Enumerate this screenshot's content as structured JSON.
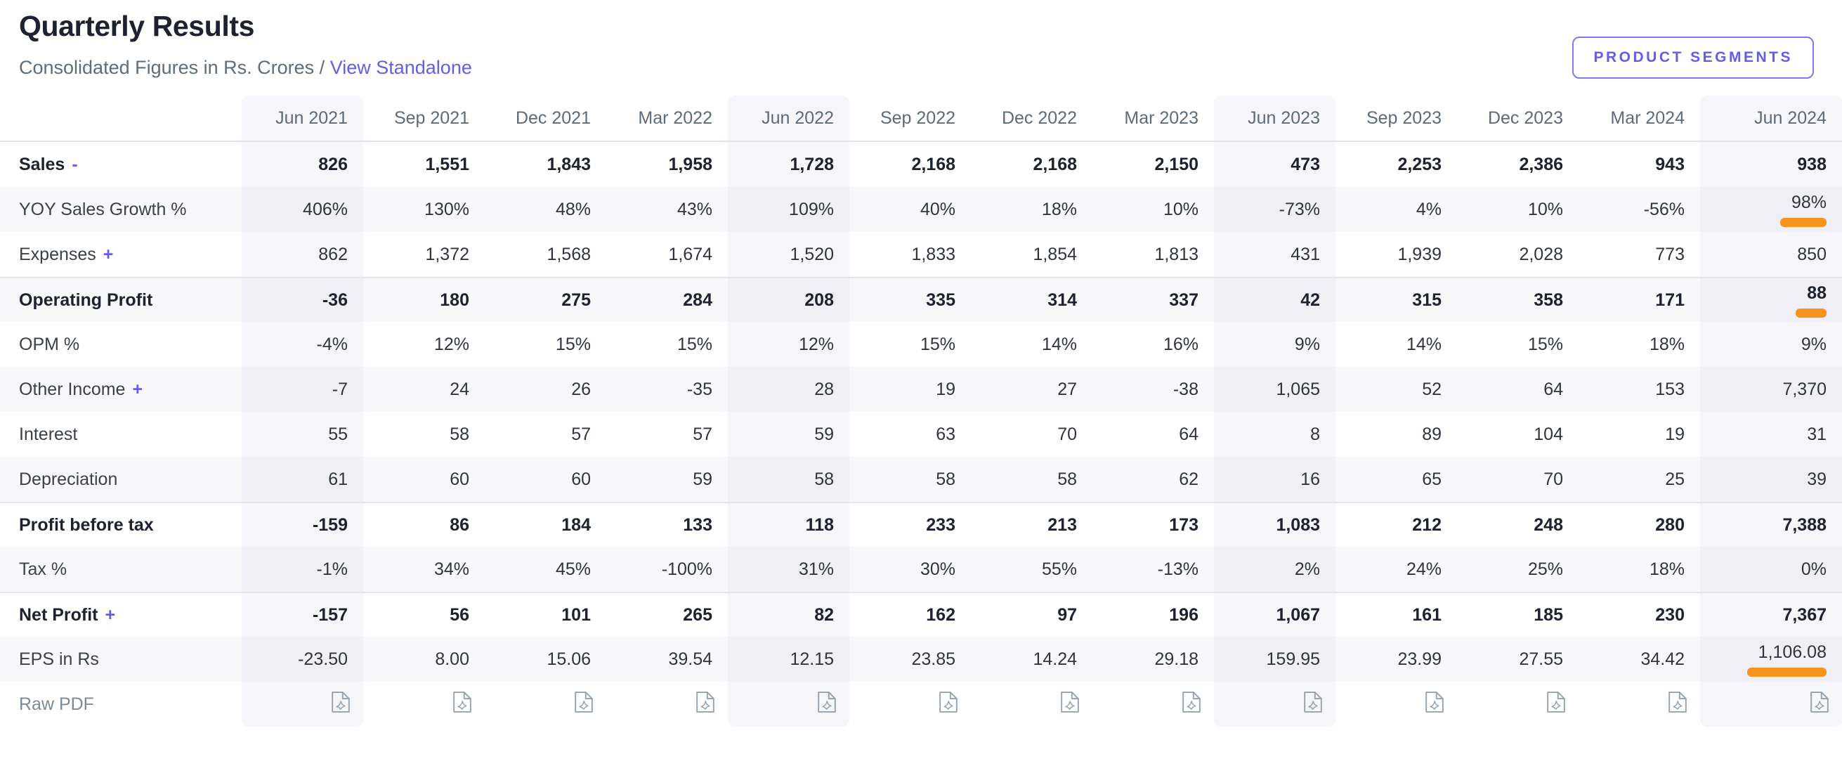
{
  "page": {
    "title": "Quarterly Results",
    "subtitle_prefix": "Consolidated Figures in Rs. Crores / ",
    "standalone_link": "View Standalone",
    "segments_button": "PRODUCT SEGMENTS"
  },
  "colors": {
    "accent": "#655cec",
    "highlight_orange": "#f8941d",
    "column_stripe": "#f2f2f8",
    "row_stripe": "#f8f8fa",
    "separator": "#dde8ee"
  },
  "icons": {
    "pdf_icon": "pdf-file-icon"
  },
  "table": {
    "columns": [
      "Jun 2021",
      "Sep 2021",
      "Dec 2021",
      "Mar 2022",
      "Jun 2022",
      "Sep 2022",
      "Dec 2022",
      "Mar 2023",
      "Jun 2023",
      "Sep 2023",
      "Dec 2023",
      "Mar 2024",
      "Jun 2024"
    ],
    "striped_column_indexes": [
      0,
      4,
      8,
      12
    ],
    "rows": [
      {
        "label": "Sales",
        "suffix": "-",
        "bold": true,
        "sep": false,
        "highlight_last": false,
        "values": [
          "826",
          "1,551",
          "1,843",
          "1,958",
          "1,728",
          "2,168",
          "2,168",
          "2,150",
          "473",
          "2,253",
          "2,386",
          "943",
          "938"
        ]
      },
      {
        "label": "YOY Sales Growth %",
        "suffix": "",
        "bold": false,
        "sep": false,
        "highlight_last": true,
        "values": [
          "406%",
          "130%",
          "48%",
          "43%",
          "109%",
          "40%",
          "18%",
          "10%",
          "-73%",
          "4%",
          "10%",
          "-56%",
          "98%"
        ]
      },
      {
        "label": "Expenses",
        "suffix": "+",
        "bold": false,
        "sep": false,
        "highlight_last": false,
        "values": [
          "862",
          "1,372",
          "1,568",
          "1,674",
          "1,520",
          "1,833",
          "1,854",
          "1,813",
          "431",
          "1,939",
          "2,028",
          "773",
          "850"
        ]
      },
      {
        "label": "Operating Profit",
        "suffix": "",
        "bold": true,
        "sep": true,
        "highlight_last": true,
        "values": [
          "-36",
          "180",
          "275",
          "284",
          "208",
          "335",
          "314",
          "337",
          "42",
          "315",
          "358",
          "171",
          "88"
        ]
      },
      {
        "label": "OPM %",
        "suffix": "",
        "bold": false,
        "sep": false,
        "highlight_last": false,
        "values": [
          "-4%",
          "12%",
          "15%",
          "15%",
          "12%",
          "15%",
          "14%",
          "16%",
          "9%",
          "14%",
          "15%",
          "18%",
          "9%"
        ]
      },
      {
        "label": "Other Income",
        "suffix": "+",
        "bold": false,
        "sep": false,
        "highlight_last": false,
        "values": [
          "-7",
          "24",
          "26",
          "-35",
          "28",
          "19",
          "27",
          "-38",
          "1,065",
          "52",
          "64",
          "153",
          "7,370"
        ]
      },
      {
        "label": "Interest",
        "suffix": "",
        "bold": false,
        "sep": false,
        "highlight_last": false,
        "values": [
          "55",
          "58",
          "57",
          "57",
          "59",
          "63",
          "70",
          "64",
          "8",
          "89",
          "104",
          "19",
          "31"
        ]
      },
      {
        "label": "Depreciation",
        "suffix": "",
        "bold": false,
        "sep": false,
        "highlight_last": false,
        "values": [
          "61",
          "60",
          "60",
          "59",
          "58",
          "58",
          "58",
          "62",
          "16",
          "65",
          "70",
          "25",
          "39"
        ]
      },
      {
        "label": "Profit before tax",
        "suffix": "",
        "bold": true,
        "sep": true,
        "highlight_last": false,
        "values": [
          "-159",
          "86",
          "184",
          "133",
          "118",
          "233",
          "213",
          "173",
          "1,083",
          "212",
          "248",
          "280",
          "7,388"
        ]
      },
      {
        "label": "Tax %",
        "suffix": "",
        "bold": false,
        "sep": false,
        "highlight_last": false,
        "values": [
          "-1%",
          "34%",
          "45%",
          "-100%",
          "31%",
          "30%",
          "55%",
          "-13%",
          "2%",
          "24%",
          "25%",
          "18%",
          "0%"
        ]
      },
      {
        "label": "Net Profit",
        "suffix": "+",
        "bold": true,
        "sep": true,
        "highlight_last": false,
        "values": [
          "-157",
          "56",
          "101",
          "265",
          "82",
          "162",
          "97",
          "196",
          "1,067",
          "161",
          "185",
          "230",
          "7,367"
        ]
      },
      {
        "label": "EPS in Rs",
        "suffix": "",
        "bold": false,
        "sep": false,
        "highlight_last": true,
        "values": [
          "-23.50",
          "8.00",
          "15.06",
          "39.54",
          "12.15",
          "23.85",
          "14.24",
          "29.18",
          "159.95",
          "23.99",
          "27.55",
          "34.42",
          "1,106.08"
        ]
      },
      {
        "label": "Raw PDF",
        "suffix": "",
        "bold": false,
        "sep": false,
        "highlight_last": false,
        "type": "pdf",
        "values": [
          "",
          "",
          "",
          "",
          "",
          "",
          "",
          "",
          "",
          "",
          "",
          "",
          ""
        ]
      }
    ]
  }
}
